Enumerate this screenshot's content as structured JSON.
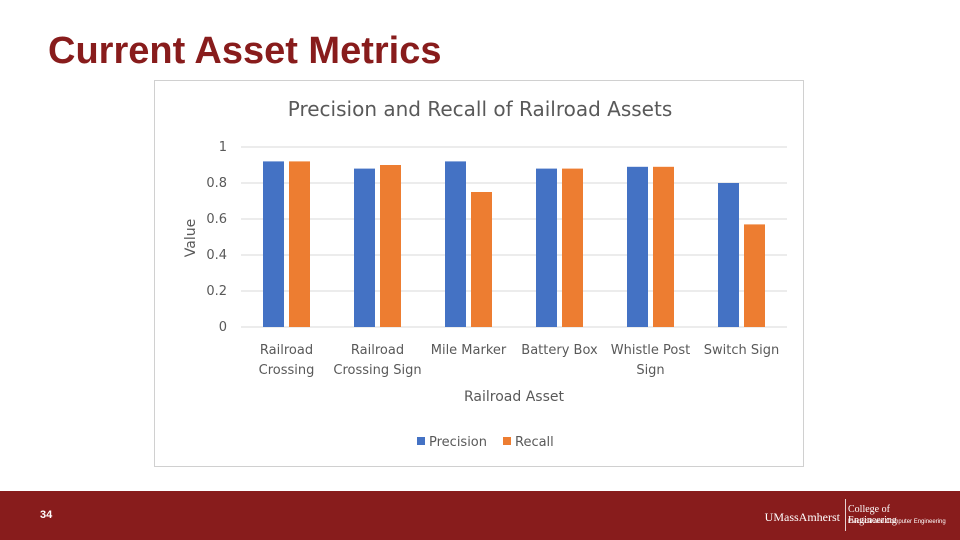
{
  "slide": {
    "title": "Current Asset Metrics",
    "page_number": "34"
  },
  "footer": {
    "university": "UMassAmherst",
    "college": "College of Engineering",
    "department": "Electrical and Computer Engineering",
    "background_color": "#881c1c"
  },
  "chart_data": {
    "type": "bar",
    "title": "Precision and Recall of Railroad Assets",
    "xlabel": "Railroad Asset",
    "ylabel": "Value",
    "ylim": [
      0,
      1
    ],
    "yticks": [
      "0",
      "0.2",
      "0.4",
      "0.6",
      "0.8",
      "1"
    ],
    "grid": true,
    "legend_position": "bottom",
    "categories": [
      [
        "Railroad",
        "Crossing"
      ],
      [
        "Railroad",
        "Crossing Sign"
      ],
      [
        "Mile Marker"
      ],
      [
        "Battery Box"
      ],
      [
        "Whistle Post",
        "Sign"
      ],
      [
        "Switch Sign"
      ]
    ],
    "series": [
      {
        "name": "Precision",
        "color": "#4472c4",
        "values": [
          0.92,
          0.88,
          0.92,
          0.88,
          0.89,
          0.8
        ]
      },
      {
        "name": "Recall",
        "color": "#ed7d31",
        "values": [
          0.92,
          0.9,
          0.75,
          0.88,
          0.89,
          0.57
        ]
      }
    ]
  }
}
